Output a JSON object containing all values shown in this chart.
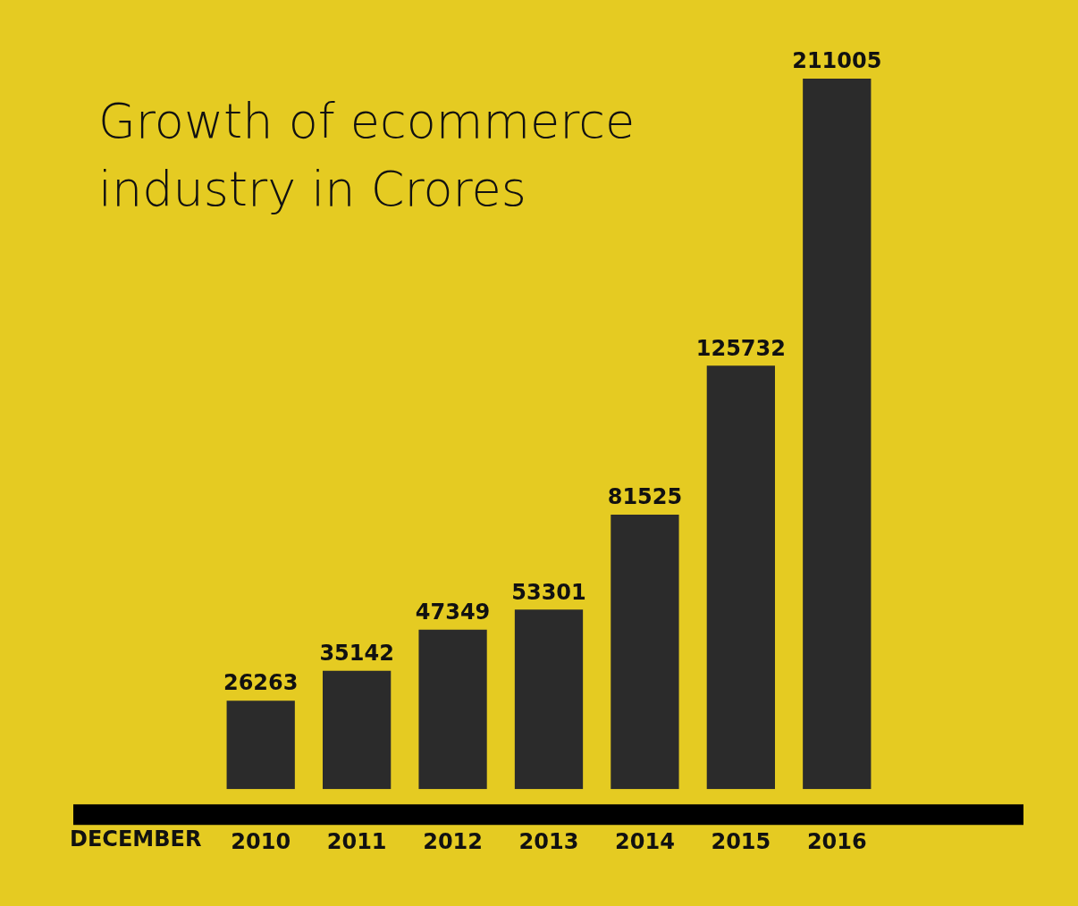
{
  "chart_data": {
    "type": "bar",
    "title": "Growth of ecommerce industry in Crores",
    "xlabel": "DECEMBER",
    "categories": [
      "2010",
      "2011",
      "2012",
      "2013",
      "2014",
      "2015",
      "2016"
    ],
    "values": [
      26263,
      35142,
      47349,
      53301,
      81525,
      125732,
      211005
    ],
    "color": "#2b2b2b",
    "data_labels": true,
    "legend": false,
    "grid": false,
    "tick_labels": "x"
  }
}
